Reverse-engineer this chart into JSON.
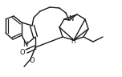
{
  "bg_color": "#ffffff",
  "line_color": "#1a1a1a",
  "lw": 1.0,
  "figsize": [
    1.52,
    0.96
  ],
  "dpi": 100,
  "xlim": [
    0,
    152
  ],
  "ylim": [
    0,
    96
  ]
}
